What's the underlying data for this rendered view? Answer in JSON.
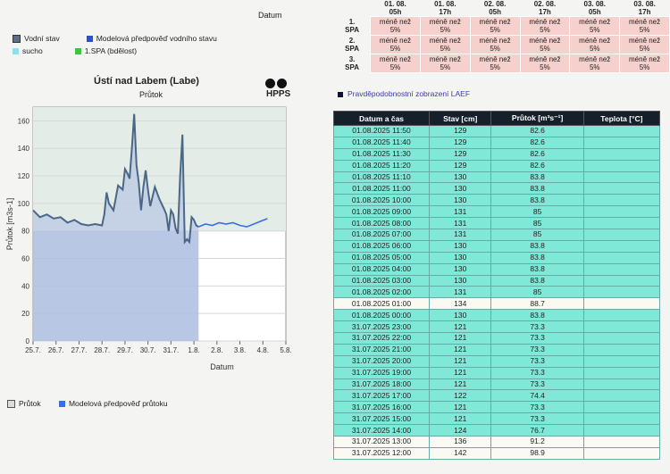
{
  "datum_top": "Datum",
  "legend_top": [
    {
      "label": "Vodní stav",
      "color": "#5a6f8a"
    },
    {
      "label": "Modelová předpověď vodního stavu",
      "color": "#2a4fd6"
    },
    {
      "label": "sucho",
      "color": "#8fe0e8"
    },
    {
      "label": "1.SPA (bdělost)",
      "color": "#3ec43e"
    }
  ],
  "spa": {
    "headers": [
      [
        "01. 08.",
        "05h"
      ],
      [
        "01. 08.",
        "17h"
      ],
      [
        "02. 08.",
        "05h"
      ],
      [
        "02. 08.",
        "17h"
      ],
      [
        "03. 08.",
        "05h"
      ],
      [
        "03. 08.",
        "17h"
      ]
    ],
    "rows": [
      {
        "label": "1. SPA",
        "cells": [
          "méně než 5%",
          "méně než 5%",
          "méně než 5%",
          "méně než 5%",
          "méně než 5%",
          "méně než 5%"
        ]
      },
      {
        "label": "2. SPA",
        "cells": [
          "méně než 5%",
          "méně než 5%",
          "méně než 5%",
          "méně než 5%",
          "méně než 5%",
          "méně než 5%"
        ]
      },
      {
        "label": "3. SPA",
        "cells": [
          "méně než 5%",
          "méně než 5%",
          "méně než 5%",
          "méně než 5%",
          "méně než 5%",
          "méně než 5%"
        ]
      }
    ]
  },
  "laef_link": "Pravděpodobnostní zobrazení LAEF",
  "chart_title": "Ústí nad Labem (Labe)",
  "chart_subtitle": "Průtok",
  "hpps": "HPPS",
  "table": {
    "headers": [
      "Datum a čas",
      "Stav [cm]",
      "Průtok [m³s⁻¹]",
      "Teplota [°C]"
    ],
    "rows": [
      [
        "01.08.2025 11:50",
        "129",
        "82.6",
        ""
      ],
      [
        "01.08.2025 11:40",
        "129",
        "82.6",
        ""
      ],
      [
        "01.08.2025 11:30",
        "129",
        "82.6",
        ""
      ],
      [
        "01.08.2025 11:20",
        "129",
        "82.6",
        ""
      ],
      [
        "01.08.2025 11:10",
        "130",
        "83.8",
        ""
      ],
      [
        "01.08.2025 11:00",
        "130",
        "83.8",
        ""
      ],
      [
        "01.08.2025 10:00",
        "130",
        "83.8",
        ""
      ],
      [
        "01.08.2025 09:00",
        "131",
        "85",
        ""
      ],
      [
        "01.08.2025 08:00",
        "131",
        "85",
        ""
      ],
      [
        "01.08.2025 07:00",
        "131",
        "85",
        ""
      ],
      [
        "01.08.2025 06:00",
        "130",
        "83.8",
        ""
      ],
      [
        "01.08.2025 05:00",
        "130",
        "83.8",
        ""
      ],
      [
        "01.08.2025 04:00",
        "130",
        "83.8",
        ""
      ],
      [
        "01.08.2025 03:00",
        "130",
        "83.8",
        ""
      ],
      [
        "01.08.2025 02:00",
        "131",
        "85",
        ""
      ],
      [
        "01.08.2025 01:00",
        "134",
        "88.7",
        ""
      ],
      [
        "01.08.2025 00:00",
        "130",
        "83.8",
        ""
      ],
      [
        "31.07.2025 23:00",
        "121",
        "73.3",
        ""
      ],
      [
        "31.07.2025 22:00",
        "121",
        "73.3",
        ""
      ],
      [
        "31.07.2025 21:00",
        "121",
        "73.3",
        ""
      ],
      [
        "31.07.2025 20:00",
        "121",
        "73.3",
        ""
      ],
      [
        "31.07.2025 19:00",
        "121",
        "73.3",
        ""
      ],
      [
        "31.07.2025 18:00",
        "121",
        "73.3",
        ""
      ],
      [
        "31.07.2025 17:00",
        "122",
        "74.4",
        ""
      ],
      [
        "31.07.2025 16:00",
        "121",
        "73.3",
        ""
      ],
      [
        "31.07.2025 15:00",
        "121",
        "73.3",
        ""
      ],
      [
        "31.07.2025 14:00",
        "124",
        "76.7",
        ""
      ],
      [
        "31.07.2025 13:00",
        "136",
        "91.2",
        ""
      ],
      [
        "31.07.2025 12:00",
        "142",
        "98.9",
        ""
      ]
    ],
    "row_colors": [
      "aq",
      "aq",
      "aq",
      "aq",
      "aq",
      "aq",
      "aq",
      "aq",
      "aq",
      "aq",
      "aq",
      "aq",
      "aq",
      "aq",
      "aq",
      "wh",
      "aq",
      "aq",
      "aq",
      "aq",
      "aq",
      "aq",
      "aq",
      "aq",
      "aq",
      "aq",
      "aq",
      "wh",
      "wh"
    ]
  },
  "legend_bottom": [
    {
      "label": "Průtok",
      "color": "#dddddd"
    },
    {
      "label": "Modelová předpověď průtoku",
      "color": "#3a6ee8"
    }
  ],
  "chart_data": {
    "type": "line",
    "xlabel": "Datum",
    "ylabel": "Průtok [m3s-1]",
    "ylim": [
      0,
      170
    ],
    "xlim": [
      0,
      11
    ],
    "x_ticks": [
      "25.7.",
      "26.7.",
      "27.7.",
      "28.7.",
      "29.7.",
      "30.7.",
      "31.7.",
      "1.8.",
      "2.8.",
      "3.8.",
      "4.8.",
      "5.8."
    ],
    "y_ticks": [
      0,
      20,
      40,
      60,
      80,
      100,
      120,
      140,
      160
    ],
    "drought_threshold": 80,
    "series": [
      {
        "name": "Průtok",
        "color": "#4a6786",
        "x": [
          0,
          0.3,
          0.6,
          0.9,
          1.2,
          1.5,
          1.8,
          2.1,
          2.4,
          2.7,
          3.0,
          3.1,
          3.2,
          3.3,
          3.5,
          3.7,
          3.9,
          4.0,
          4.1,
          4.2,
          4.3,
          4.4,
          4.5,
          4.6,
          4.7,
          4.8,
          4.9,
          5.0,
          5.1,
          5.3,
          5.5,
          5.7,
          5.8,
          5.9,
          6.0,
          6.1,
          6.2,
          6.3,
          6.4,
          6.5,
          6.6,
          6.7,
          6.8,
          6.9,
          7.0,
          7.1,
          7.2
        ],
        "y": [
          95,
          90,
          92,
          89,
          90,
          86,
          88,
          85,
          84,
          85,
          84,
          92,
          108,
          100,
          95,
          113,
          110,
          125,
          122,
          118,
          140,
          165,
          128,
          115,
          95,
          112,
          124,
          110,
          98,
          112,
          103,
          96,
          92,
          80,
          95,
          92,
          82,
          78,
          120,
          150,
          72,
          74,
          72,
          90,
          88,
          84,
          83
        ]
      },
      {
        "name": "Modelová předpověď průtoku",
        "color": "#3a6ee8",
        "x": [
          7.2,
          7.5,
          7.8,
          8.1,
          8.4,
          8.7,
          9.0,
          9.3,
          9.6,
          9.9,
          10.2
        ],
        "y": [
          83,
          85,
          84,
          86,
          85,
          86,
          84,
          83,
          85,
          87,
          89
        ]
      }
    ]
  }
}
